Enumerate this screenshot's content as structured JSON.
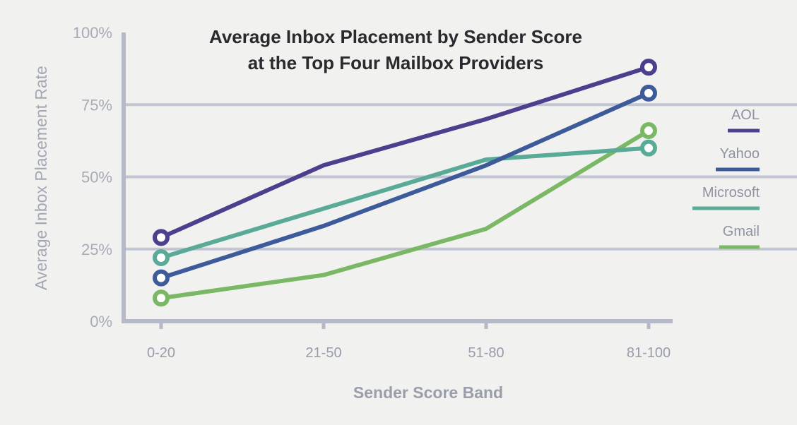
{
  "chart_data": {
    "type": "line",
    "title_lines": [
      "Average Inbox Placement by Sender Score",
      "at the Top Four Mailbox Providers"
    ],
    "xlabel": "Sender Score Band",
    "ylabel": "Average Inbox Placement Rate",
    "categories": [
      "0-20",
      "21-50",
      "51-80",
      "81-100"
    ],
    "y_ticks": [
      {
        "value": 0,
        "label": "0%"
      },
      {
        "value": 25,
        "label": "25%"
      },
      {
        "value": 50,
        "label": "50%"
      },
      {
        "value": 75,
        "label": "75%"
      },
      {
        "value": 100,
        "label": "100%"
      }
    ],
    "ylim": [
      0,
      100
    ],
    "grid": "horizontal",
    "legend_position": "right",
    "series": [
      {
        "name": "AOL",
        "color": "#4d3f8e",
        "values": [
          29,
          54,
          70,
          88
        ]
      },
      {
        "name": "Yahoo",
        "color": "#3d5a9a",
        "values": [
          15,
          33,
          54,
          79
        ]
      },
      {
        "name": "Microsoft",
        "color": "#5aaa98",
        "values": [
          22,
          39,
          56,
          60
        ]
      },
      {
        "name": "Gmail",
        "color": "#7ab866",
        "values": [
          8,
          16,
          32,
          66
        ]
      }
    ]
  }
}
